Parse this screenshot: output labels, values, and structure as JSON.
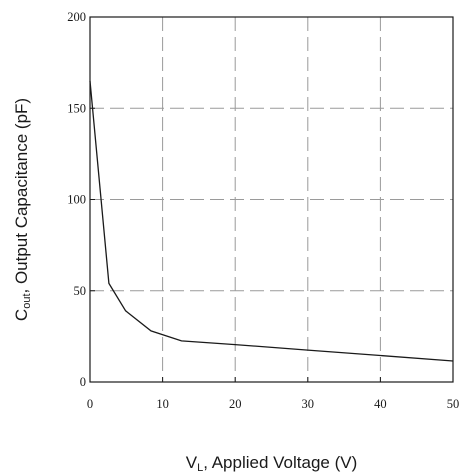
{
  "chart_data": {
    "type": "line",
    "title": "",
    "xlabel": {
      "main": "V",
      "sub": "L",
      "rest": ", Applied Voltage (V)"
    },
    "ylabel": {
      "main": "C",
      "sub": "out",
      "rest": ",  Output Capacitance (pF)"
    },
    "xlim": [
      0,
      50
    ],
    "ylim": [
      0,
      200
    ],
    "x_ticks": [
      0,
      10,
      20,
      30,
      40,
      50
    ],
    "y_ticks": [
      0,
      50,
      100,
      150,
      200
    ],
    "grid": {
      "x": true,
      "y": true,
      "style": "dashed"
    },
    "series": [
      {
        "x": [
          0,
          2.6,
          4.9,
          8.4,
          12.6,
          20,
          30,
          40,
          50
        ],
        "y": [
          165,
          54,
          39,
          28,
          22.5,
          20.5,
          17.5,
          14.5,
          11.5
        ]
      }
    ],
    "colors": {
      "line": "#1a1a1a",
      "grid": "#9a9a9a",
      "axis": "#1a1a1a"
    }
  }
}
